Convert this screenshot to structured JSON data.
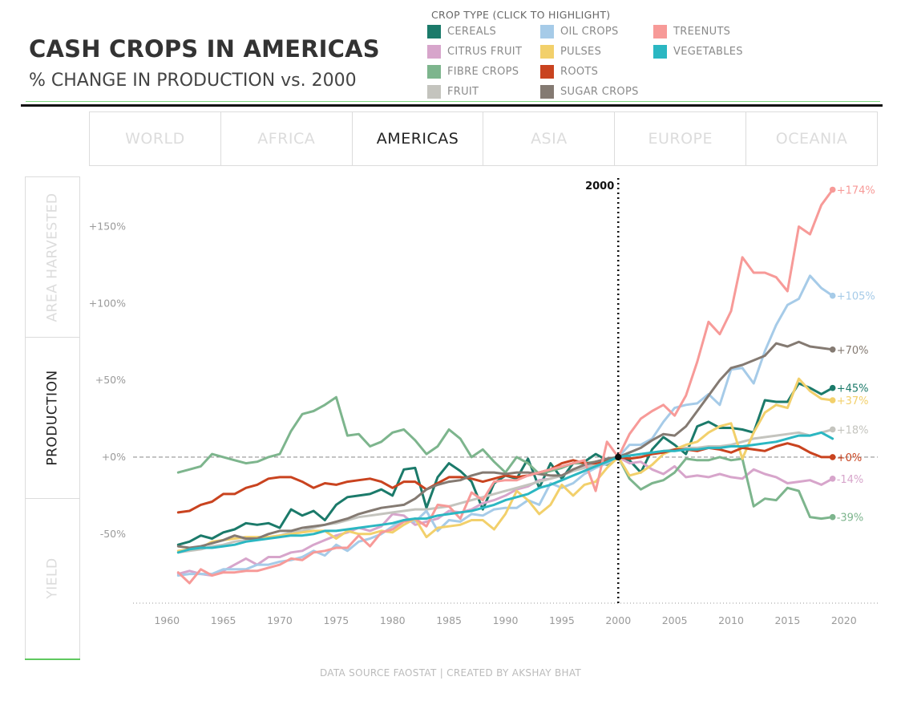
{
  "header": {
    "title": "CASH CROPS IN AMERICAS",
    "subtitle": "% CHANGE IN PRODUCTION vs. 2000"
  },
  "legend": {
    "title": "CROP TYPE (CLICK TO HIGHLIGHT)",
    "items": [
      {
        "label": "CEREALS",
        "color": "#1b7a6a"
      },
      {
        "label": "CITRUS FRUIT",
        "color": "#d7a5cb"
      },
      {
        "label": "FIBRE CROPS",
        "color": "#7db58d"
      },
      {
        "label": "FRUIT",
        "color": "#c4c4be"
      },
      {
        "label": "OIL CROPS",
        "color": "#a6cbe8"
      },
      {
        "label": "PULSES",
        "color": "#f2d06b"
      },
      {
        "label": "ROOTS",
        "color": "#c9431f"
      },
      {
        "label": "SUGAR CROPS",
        "color": "#847a72"
      },
      {
        "label": "TREENUTS",
        "color": "#f79a98"
      },
      {
        "label": "VEGETABLES",
        "color": "#2bb7c2"
      }
    ]
  },
  "regions": {
    "items": [
      "WORLD",
      "AFRICA",
      "AMERICAS",
      "ASIA",
      "EUROPE",
      "OCEANIA"
    ],
    "active": "AMERICAS"
  },
  "metrics": {
    "items": [
      "AREA HARVESTED",
      "PRODUCTION",
      "YIELD"
    ],
    "active": "PRODUCTION"
  },
  "footer": "DATA SOURCE FAOSTAT | CREATED BY AKSHAY BHAT",
  "chart_data": {
    "type": "line",
    "title": "",
    "xlabel": "",
    "ylabel": "",
    "xlim": [
      1957,
      2023
    ],
    "ylim": [
      -95,
      180
    ],
    "yticks": [
      -50,
      0,
      50,
      100,
      150
    ],
    "ytick_labels": [
      "-50%",
      "+0%",
      "+50%",
      "+100%",
      "+150%"
    ],
    "xticks": [
      1960,
      1965,
      1970,
      1975,
      1980,
      1985,
      1990,
      1995,
      2000,
      2005,
      2010,
      2015,
      2020
    ],
    "xtick_labels": [
      "1960",
      "1965",
      "1970",
      "1975",
      "1980",
      "1985",
      "1990",
      "1995",
      "2000",
      "2005",
      "2010",
      "2015",
      "2020"
    ],
    "reference_year": 2000,
    "reference_label": "2000",
    "grid": false,
    "x": [
      1961,
      1962,
      1963,
      1964,
      1965,
      1966,
      1967,
      1968,
      1969,
      1970,
      1971,
      1972,
      1973,
      1974,
      1975,
      1976,
      1977,
      1978,
      1979,
      1980,
      1981,
      1982,
      1983,
      1984,
      1985,
      1986,
      1987,
      1988,
      1989,
      1990,
      1991,
      1992,
      1993,
      1994,
      1995,
      1996,
      1997,
      1998,
      1999,
      2000,
      2001,
      2002,
      2003,
      2004,
      2005,
      2006,
      2007,
      2008,
      2009,
      2010,
      2011,
      2012,
      2013,
      2014,
      2015,
      2016,
      2017,
      2018,
      2019
    ],
    "series": [
      {
        "name": "CEREALS",
        "color": "#1b7a6a",
        "end_label": "+45%",
        "values": [
          -57,
          -55,
          -51,
          -53,
          -49,
          -47,
          -43,
          -44,
          -43,
          -46,
          -34,
          -38,
          -35,
          -41,
          -31,
          -26,
          -25,
          -24,
          -21,
          -25,
          -8,
          -7,
          -33,
          -13,
          -4,
          -9,
          -16,
          -34,
          -17,
          -12,
          -14,
          -1,
          -20,
          -4,
          -14,
          -4,
          -3,
          2,
          -2,
          0,
          -2,
          -10,
          5,
          13,
          8,
          2,
          20,
          23,
          19,
          19,
          18,
          16,
          37,
          36,
          36,
          48,
          45,
          41,
          45
        ]
      },
      {
        "name": "CITRUS FRUIT",
        "color": "#d7a5cb",
        "end_label": "-14%",
        "values": [
          -76,
          -74,
          -76,
          -77,
          -74,
          -70,
          -66,
          -70,
          -65,
          -65,
          -62,
          -61,
          -57,
          -54,
          -51,
          -49,
          -46,
          -48,
          -45,
          -37,
          -38,
          -44,
          -42,
          -40,
          -35,
          -36,
          -34,
          -30,
          -28,
          -25,
          -21,
          -19,
          -15,
          -14,
          -12,
          -8,
          -6,
          -3,
          -1,
          0,
          -4,
          -3,
          -8,
          -11,
          -6,
          -13,
          -12,
          -13,
          -11,
          -13,
          -14,
          -8,
          -11,
          -13,
          -17,
          -16,
          -15,
          -18,
          -14
        ]
      },
      {
        "name": "FIBRE CROPS",
        "color": "#7db58d",
        "end_label": "-39%",
        "values": [
          -10,
          -8,
          -6,
          2,
          0,
          -2,
          -4,
          -3,
          0,
          2,
          17,
          28,
          30,
          34,
          39,
          14,
          15,
          7,
          10,
          16,
          18,
          11,
          2,
          7,
          18,
          12,
          0,
          5,
          -3,
          -10,
          0,
          -4,
          -11,
          -9,
          -7,
          -4,
          -4,
          -3,
          -5,
          0,
          -14,
          -21,
          -17,
          -15,
          -10,
          -1,
          -2,
          -2,
          0,
          -2,
          -1,
          -32,
          -27,
          -28,
          -20,
          -22,
          -39,
          -40,
          -39
        ]
      },
      {
        "name": "FRUIT",
        "color": "#c4c4be",
        "end_label": "+18%",
        "values": [
          -62,
          -61,
          -60,
          -58,
          -57,
          -55,
          -54,
          -53,
          -52,
          -51,
          -49,
          -48,
          -46,
          -44,
          -43,
          -41,
          -39,
          -38,
          -37,
          -36,
          -35,
          -34,
          -34,
          -33,
          -32,
          -30,
          -28,
          -26,
          -24,
          -22,
          -20,
          -18,
          -16,
          -14,
          -12,
          -9,
          -7,
          -5,
          -2,
          0,
          1,
          2,
          3,
          4,
          5,
          6,
          6,
          7,
          7,
          8,
          10,
          12,
          13,
          14,
          15,
          16,
          14,
          16,
          18
        ]
      },
      {
        "name": "OIL CROPS",
        "color": "#a6cbe8",
        "end_label": "+105%",
        "values": [
          -77,
          -76,
          -76,
          -76,
          -73,
          -73,
          -73,
          -70,
          -70,
          -68,
          -67,
          -65,
          -61,
          -64,
          -57,
          -61,
          -55,
          -53,
          -50,
          -45,
          -41,
          -42,
          -35,
          -48,
          -41,
          -42,
          -37,
          -38,
          -34,
          -33,
          -33,
          -28,
          -31,
          -17,
          -20,
          -17,
          -11,
          -7,
          -4,
          0,
          8,
          8,
          12,
          23,
          32,
          34,
          35,
          41,
          34,
          57,
          58,
          48,
          69,
          86,
          99,
          103,
          118,
          110,
          105
        ]
      },
      {
        "name": "PULSES",
        "color": "#f2d06b",
        "end_label": "+37%",
        "values": [
          -61,
          -60,
          -59,
          -55,
          -54,
          -53,
          -52,
          -52,
          -52,
          -51,
          -50,
          -49,
          -48,
          -48,
          -53,
          -48,
          -50,
          -50,
          -48,
          -49,
          -44,
          -40,
          -52,
          -46,
          -45,
          -44,
          -41,
          -41,
          -47,
          -37,
          -22,
          -28,
          -37,
          -31,
          -18,
          -25,
          -18,
          -16,
          -7,
          0,
          -12,
          -10,
          -5,
          2,
          5,
          8,
          10,
          16,
          20,
          22,
          -1,
          16,
          29,
          34,
          32,
          51,
          43,
          38,
          37
        ]
      },
      {
        "name": "ROOTS",
        "color": "#c9431f",
        "end_label": "+0%",
        "values": [
          -36,
          -35,
          -31,
          -29,
          -24,
          -24,
          -20,
          -18,
          -14,
          -13,
          -13,
          -16,
          -20,
          -17,
          -18,
          -16,
          -15,
          -14,
          -16,
          -20,
          -16,
          -16,
          -21,
          -17,
          -13,
          -13,
          -14,
          -16,
          -14,
          -12,
          -13,
          -12,
          -10,
          -8,
          -4,
          -2,
          -4,
          -4,
          -2,
          0,
          -1,
          0,
          2,
          3,
          5,
          5,
          4,
          6,
          5,
          3,
          6,
          5,
          4,
          7,
          9,
          7,
          3,
          0,
          0
        ]
      },
      {
        "name": "SUGAR CROPS",
        "color": "#847a72",
        "end_label": "+70%",
        "values": [
          -58,
          -59,
          -58,
          -56,
          -54,
          -51,
          -53,
          -53,
          -50,
          -48,
          -48,
          -46,
          -45,
          -44,
          -42,
          -40,
          -37,
          -35,
          -33,
          -32,
          -31,
          -27,
          -21,
          -18,
          -16,
          -15,
          -12,
          -10,
          -10,
          -11,
          -10,
          -10,
          -11,
          -12,
          -12,
          -8,
          -5,
          -3,
          -1,
          0,
          3,
          6,
          11,
          15,
          14,
          20,
          30,
          40,
          50,
          58,
          60,
          63,
          66,
          74,
          72,
          75,
          72,
          71,
          70
        ]
      },
      {
        "name": "TREENUTS",
        "color": "#f79a98",
        "end_label": "+174%",
        "values": [
          -75,
          -82,
          -73,
          -77,
          -75,
          -75,
          -74,
          -74,
          -72,
          -70,
          -66,
          -67,
          -62,
          -61,
          -59,
          -59,
          -51,
          -58,
          -49,
          -47,
          -42,
          -40,
          -45,
          -31,
          -32,
          -40,
          -23,
          -28,
          -16,
          -15,
          -15,
          -12,
          -10,
          -8,
          -6,
          -4,
          -2,
          -22,
          10,
          0,
          15,
          25,
          30,
          34,
          27,
          40,
          62,
          88,
          80,
          95,
          130,
          120,
          120,
          117,
          108,
          150,
          145,
          164,
          174
        ]
      },
      {
        "name": "VEGETABLES",
        "color": "#2bb7c2",
        "end_label": "",
        "values": [
          -62,
          -60,
          -59,
          -59,
          -58,
          -57,
          -55,
          -54,
          -53,
          -52,
          -51,
          -51,
          -50,
          -48,
          -48,
          -47,
          -46,
          -45,
          -44,
          -43,
          -41,
          -40,
          -40,
          -38,
          -37,
          -36,
          -35,
          -33,
          -31,
          -28,
          -26,
          -24,
          -20,
          -18,
          -15,
          -12,
          -9,
          -6,
          -3,
          0,
          1,
          2,
          3,
          4,
          4,
          5,
          5,
          6,
          6,
          7,
          7,
          8,
          9,
          10,
          12,
          14,
          14,
          16,
          12
        ]
      }
    ]
  }
}
